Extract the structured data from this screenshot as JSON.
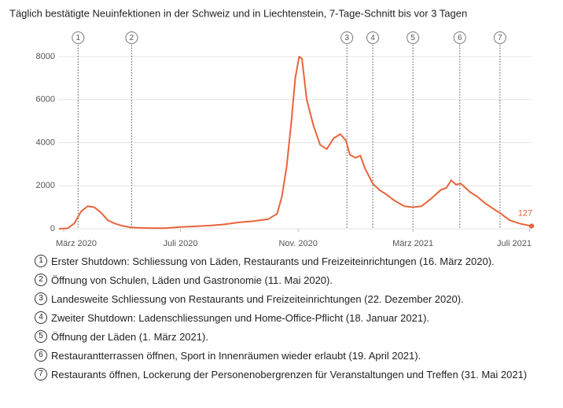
{
  "chart_data": {
    "type": "line",
    "title": "Täglich bestätigte Neuinfektionen in der Schweiz und in Liechtenstein, 7-Tage-Schnitt bis vor 3 Tagen",
    "color": "#e8643c",
    "x": [
      "2020-02-25",
      "2020-03-05",
      "2020-03-12",
      "2020-03-19",
      "2020-03-26",
      "2020-04-02",
      "2020-04-09",
      "2020-04-16",
      "2020-04-23",
      "2020-04-30",
      "2020-05-10",
      "2020-05-20",
      "2020-06-01",
      "2020-06-15",
      "2020-07-01",
      "2020-07-15",
      "2020-08-01",
      "2020-08-15",
      "2020-09-01",
      "2020-09-15",
      "2020-10-01",
      "2020-10-10",
      "2020-10-15",
      "2020-10-20",
      "2020-10-25",
      "2020-10-29",
      "2020-11-02",
      "2020-11-05",
      "2020-11-10",
      "2020-11-17",
      "2020-11-24",
      "2020-12-01",
      "2020-12-08",
      "2020-12-15",
      "2020-12-21",
      "2020-12-25",
      "2020-12-31",
      "2021-01-05",
      "2021-01-10",
      "2021-01-18",
      "2021-01-25",
      "2021-02-01",
      "2021-02-10",
      "2021-02-20",
      "2021-03-01",
      "2021-03-10",
      "2021-03-20",
      "2021-03-30",
      "2021-04-05",
      "2021-04-10",
      "2021-04-15",
      "2021-04-20",
      "2021-04-30",
      "2021-05-07",
      "2021-05-15",
      "2021-05-25",
      "2021-06-01",
      "2021-06-10",
      "2021-06-20",
      "2021-06-30",
      "2021-07-03"
    ],
    "values": [
      0,
      20,
      250,
      800,
      1050,
      1000,
      750,
      400,
      250,
      150,
      60,
      40,
      30,
      30,
      80,
      110,
      150,
      200,
      300,
      350,
      450,
      700,
      1500,
      2900,
      5000,
      7000,
      8000,
      7900,
      6000,
      4800,
      3900,
      3700,
      4200,
      4400,
      4100,
      3450,
      3300,
      3400,
      2800,
      2100,
      1800,
      1600,
      1300,
      1050,
      1000,
      1050,
      1400,
      1800,
      1900,
      2250,
      2050,
      2100,
      1700,
      1500,
      1200,
      900,
      700,
      400,
      250,
      150,
      127
    ],
    "xlim": [
      "2020-02-25",
      "2021-07-03"
    ],
    "xticks": [
      {
        "value": "2020-03-01",
        "label": "März 2020"
      },
      {
        "value": "2020-07-01",
        "label": "Juli 2020"
      },
      {
        "value": "2020-11-01",
        "label": "Nov. 2020"
      },
      {
        "value": "2021-03-01",
        "label": "März 2021"
      },
      {
        "value": "2021-07-01",
        "label": "Juli 2021"
      }
    ],
    "ylim": [
      0,
      8000
    ],
    "yticks": [
      0,
      2000,
      4000,
      6000,
      8000
    ],
    "grid": true,
    "events": [
      {
        "number": "1",
        "date": "2020-03-16",
        "text": "Erster Shutdown: Schliessung von Läden, Restaurants und Freizeiteinrichtungen (16. März 2020)."
      },
      {
        "number": "2",
        "date": "2020-05-11",
        "text": "Öffnung von Schulen, Läden und Gastronomie (11. Mai 2020)."
      },
      {
        "number": "3",
        "date": "2020-12-22",
        "text": "Landesweite Schliessung von Restaurants und Freizeiteinrichtungen (22. Dezember 2020)."
      },
      {
        "number": "4",
        "date": "2021-01-18",
        "text": "Zweiter Shutdown: Ladenschliessungen und Home-Office-Pflicht (18. Januar 2021)."
      },
      {
        "number": "5",
        "date": "2021-03-01",
        "text": "Öffnung der Läden (1. März 2021)."
      },
      {
        "number": "6",
        "date": "2021-04-19",
        "text": "Restaurantterrassen öffnen, Sport in Innenräumen wieder erlaubt (19. April 2021)."
      },
      {
        "number": "7",
        "date": "2021-05-31",
        "text": "Restaurants öffnen, Lockerung der Personenobergrenzen für Veranstaltungen und Treffen (31. Mai 2021)"
      }
    ]
  }
}
